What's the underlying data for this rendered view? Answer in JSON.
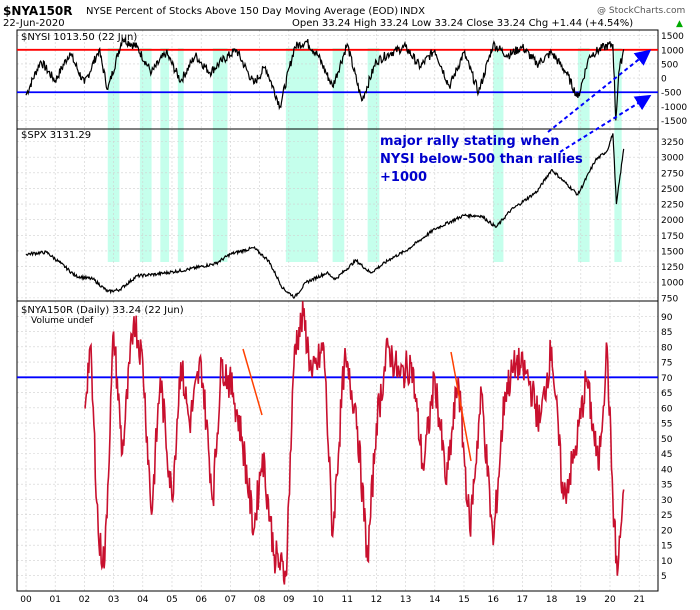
{
  "header": {
    "symbol": "$NYA150R",
    "description": "NYSE Percent of Stocks Above 150 Day Moving Average (EOD)",
    "exchange": "INDX",
    "watermark": "@ StockCharts.com",
    "date": "22-Jun-2020",
    "ohlc": "Open 33.24  High 33.24  Low 33.24  Close 33.24  Chg +1.44 (+4.54%)",
    "chg_marker": "▲"
  },
  "colors": {
    "nysi_line": "#000000",
    "spx_line": "#000000",
    "nya_line": "#c8102e",
    "red_hline": "#ff0000",
    "blue_hline": "#0000ff",
    "highlight": "#7fffd4",
    "annotation_arrow": "#0000ff",
    "annotation_text": "#0000cc",
    "trend_line": "#ff4000"
  },
  "chart_data": [
    {
      "type": "line",
      "panel": "NYSI",
      "label": "$NYSI 1013.50 (22 Jun)",
      "ylim": [
        -1800,
        1700
      ],
      "yticks": [
        -1500,
        -1000,
        -500,
        0,
        500,
        1000,
        1500
      ],
      "reference_lines": [
        {
          "value": 1000,
          "color": "red"
        },
        {
          "value": -500,
          "color": "blue"
        }
      ],
      "series": [
        {
          "x": [
            2000.0,
            2000.5,
            2001.0,
            2001.5,
            2002.0,
            2002.5,
            2002.8,
            2003.3,
            2003.8,
            2004.3,
            2004.8,
            2005.3,
            2005.8,
            2006.3,
            2006.7,
            2007.2,
            2007.8,
            2008.2,
            2008.7,
            2009.2,
            2009.6,
            2010.0,
            2010.5,
            2011.0,
            2011.5,
            2012.0,
            2012.5,
            2013.0,
            2013.5,
            2014.0,
            2014.5,
            2015.0,
            2015.5,
            2016.0,
            2016.5,
            2017.0,
            2017.5,
            2018.0,
            2018.5,
            2018.9,
            2019.3,
            2019.8,
            2020.1,
            2020.2,
            2020.3,
            2020.47
          ],
          "values": [
            -600,
            600,
            -100,
            900,
            -200,
            1000,
            -400,
            1400,
            1100,
            200,
            900,
            -100,
            800,
            200,
            600,
            1000,
            -200,
            400,
            -1000,
            1100,
            1300,
            800,
            -300,
            1200,
            -800,
            600,
            900,
            1100,
            400,
            1000,
            -300,
            900,
            -500,
            1200,
            800,
            1100,
            500,
            900,
            200,
            -700,
            800,
            1100,
            1200,
            -1500,
            200,
            1013.5
          ]
        }
      ]
    },
    {
      "type": "line",
      "panel": "SPX",
      "label": "$SPX 3131.29",
      "ylim": [
        700,
        3450
      ],
      "yticks": [
        750,
        1000,
        1250,
        1500,
        1750,
        2000,
        2250,
        2500,
        2750,
        3000,
        3250
      ],
      "series": [
        {
          "x": [
            2000.0,
            2000.7,
            2001.2,
            2001.7,
            2002.3,
            2002.8,
            2003.2,
            2003.8,
            2004.5,
            2005.5,
            2006.5,
            2007.0,
            2007.8,
            2008.3,
            2008.8,
            2009.2,
            2009.6,
            2010.3,
            2010.6,
            2011.3,
            2011.8,
            2012.5,
            2013.0,
            2014.0,
            2015.0,
            2015.6,
            2016.1,
            2016.6,
            2017.5,
            2018.0,
            2018.9,
            2019.5,
            2019.9,
            2020.1,
            2020.22,
            2020.47
          ],
          "values": [
            1450,
            1480,
            1300,
            1100,
            1050,
            850,
            880,
            1100,
            1130,
            1200,
            1300,
            1450,
            1550,
            1350,
            900,
            760,
            1000,
            1150,
            1050,
            1350,
            1150,
            1380,
            1500,
            1850,
            2070,
            2060,
            1880,
            2150,
            2450,
            2800,
            2400,
            2950,
            3100,
            3380,
            2250,
            3131.29
          ]
        }
      ]
    },
    {
      "type": "line",
      "panel": "NYA150R",
      "label": "$NYA150R (Daily) 33.24 (22 Jun)",
      "sublabel": "Volume undef",
      "ylim": [
        0,
        95
      ],
      "yticks": [
        5,
        10,
        15,
        20,
        25,
        30,
        35,
        40,
        45,
        50,
        55,
        60,
        65,
        70,
        75,
        80,
        85,
        90
      ],
      "reference_lines": [
        {
          "value": 70,
          "color": "blue"
        }
      ],
      "x_ticks": [
        "00",
        "01",
        "02",
        "03",
        "04",
        "05",
        "06",
        "07",
        "08",
        "09",
        "10",
        "11",
        "12",
        "13",
        "14",
        "15",
        "16",
        "17",
        "18",
        "19",
        "20",
        "21"
      ],
      "series": [
        {
          "x": [
            2002.0,
            2002.2,
            2002.5,
            2002.7,
            2003.0,
            2003.3,
            2003.7,
            2004.0,
            2004.3,
            2004.6,
            2005.0,
            2005.3,
            2005.6,
            2006.0,
            2006.4,
            2006.7,
            2007.1,
            2007.4,
            2007.8,
            2008.1,
            2008.5,
            2008.9,
            2009.2,
            2009.5,
            2009.8,
            2010.2,
            2010.5,
            2010.9,
            2011.3,
            2011.7,
            2012.0,
            2012.4,
            2012.8,
            2013.2,
            2013.6,
            2014.0,
            2014.4,
            2014.8,
            2015.2,
            2015.6,
            2016.0,
            2016.4,
            2016.8,
            2017.2,
            2017.6,
            2018.0,
            2018.4,
            2018.8,
            2019.2,
            2019.6,
            2019.9,
            2020.1,
            2020.25,
            2020.47
          ],
          "values": [
            60,
            80,
            15,
            10,
            85,
            45,
            90,
            75,
            25,
            70,
            30,
            75,
            55,
            75,
            30,
            75,
            65,
            50,
            20,
            45,
            12,
            5,
            80,
            90,
            70,
            80,
            18,
            75,
            60,
            10,
            55,
            80,
            70,
            75,
            40,
            70,
            35,
            70,
            20,
            65,
            15,
            65,
            75,
            70,
            55,
            80,
            30,
            45,
            70,
            40,
            80,
            30,
            5,
            33.24
          ]
        }
      ]
    }
  ],
  "annotation": {
    "line1": "major rally stating when",
    "line2": "NYSI below-500 than rallies",
    "line3": "+1000"
  }
}
